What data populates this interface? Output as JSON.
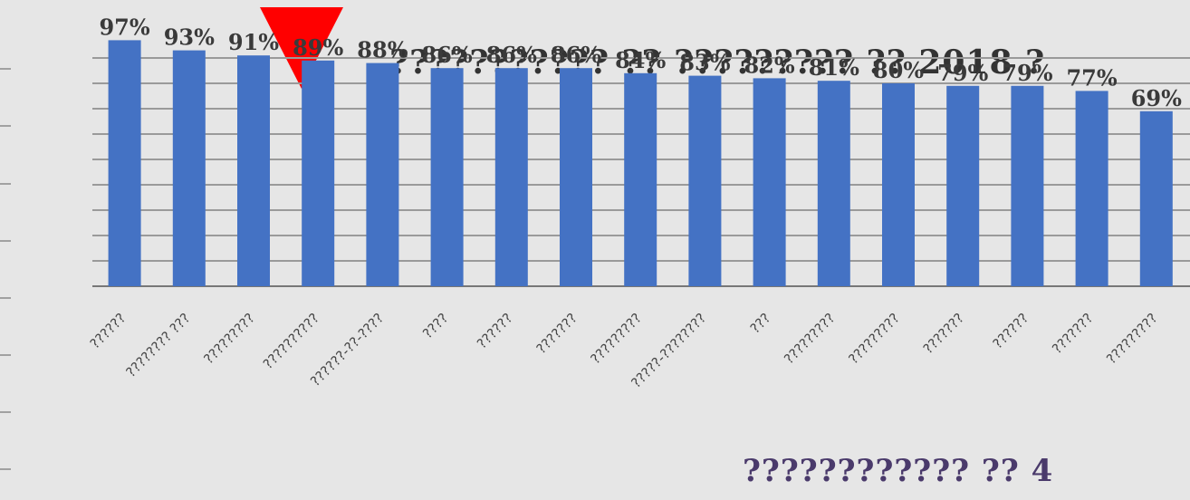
{
  "chart_data": {
    "type": "bar",
    "title": "??????????? ?? ????????? ?? 2018 ?",
    "xlabel": "",
    "ylabel": "",
    "ylim": [
      0,
      100
    ],
    "grid": true,
    "categories": [
      "??????",
      "???????? ???",
      "?????????",
      "??????????",
      "??????-??-????",
      "????",
      "??????",
      "???????",
      "?????????",
      "?????-????????",
      "???",
      "?????????",
      "?????????",
      "???????",
      "??????",
      "???????",
      "?????????"
    ],
    "values": [
      97,
      93,
      91,
      89,
      88,
      86,
      86,
      86,
      84,
      83,
      82,
      81,
      80,
      79,
      79,
      77,
      69
    ],
    "data_labels": [
      "97%",
      "93%",
      "91%",
      "89%",
      "88%",
      "86%",
      "86%",
      "86%",
      "84%",
      "83%",
      "82%",
      "81%",
      "80%",
      "79%",
      "79%",
      "77%",
      "69%"
    ],
    "bar_color": "#4472c4",
    "highlight_marker": {
      "color": "#ff0000",
      "category_index": 3
    }
  },
  "footnote": "???????????? ?? 4"
}
